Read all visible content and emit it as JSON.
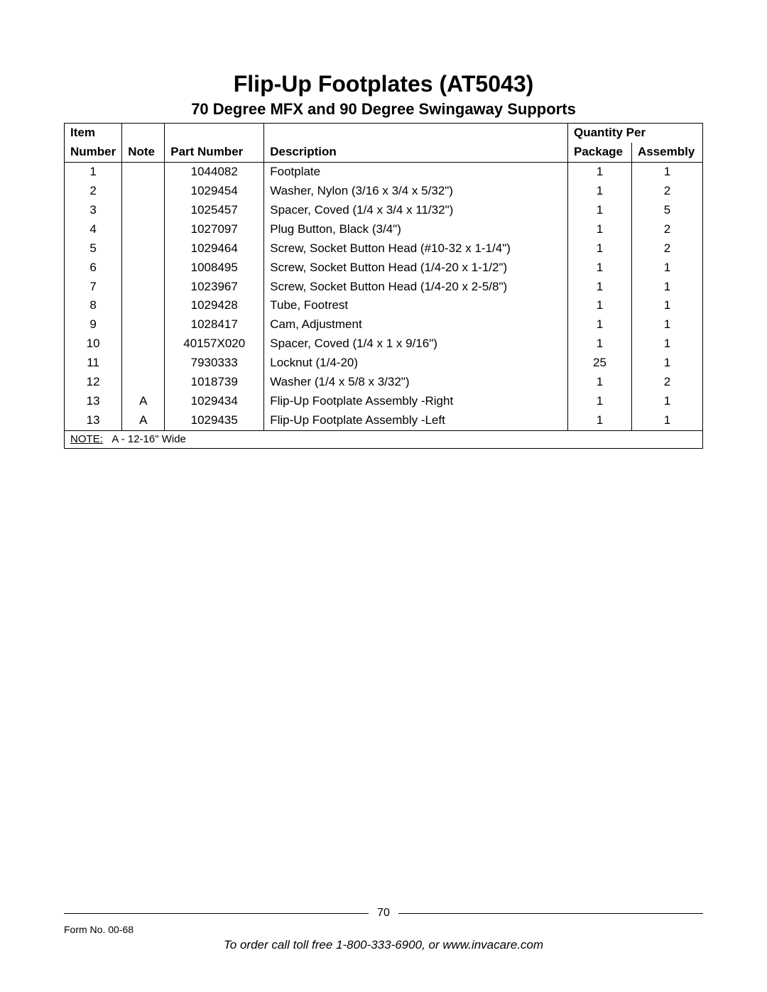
{
  "title": "Flip-Up Footplates (AT5043)",
  "subtitle": "70 Degree MFX and 90 Degree Swingaway Supports",
  "headers": {
    "item_top": "Item",
    "item": "Number",
    "note": "Note",
    "part_number": "Part Number",
    "description": "Description",
    "qty_per": "Quantity Per",
    "package": "Package",
    "assembly": "Assembly"
  },
  "rows": [
    {
      "item": "1",
      "note": "",
      "pn": "1044082",
      "desc": "Footplate",
      "pkg": "1",
      "asm": "1"
    },
    {
      "item": "2",
      "note": "",
      "pn": "1029454",
      "desc": "Washer, Nylon (3/16 x 3/4 x 5/32\")",
      "pkg": "1",
      "asm": "2"
    },
    {
      "item": "3",
      "note": "",
      "pn": "1025457",
      "desc": "Spacer, Coved (1/4 x 3/4 x 11/32\")",
      "pkg": "1",
      "asm": "5"
    },
    {
      "item": "4",
      "note": "",
      "pn": "1027097",
      "desc": "Plug Button, Black (3/4\")",
      "pkg": "1",
      "asm": "2"
    },
    {
      "item": "5",
      "note": "",
      "pn": "1029464",
      "desc": "Screw, Socket Button Head (#10-32 x 1-1/4\")",
      "pkg": "1",
      "asm": "2"
    },
    {
      "item": "6",
      "note": "",
      "pn": "1008495",
      "desc": "Screw, Socket Button Head (1/4-20 x 1-1/2\")",
      "pkg": "1",
      "asm": "1"
    },
    {
      "item": "7",
      "note": "",
      "pn": "1023967",
      "desc": "Screw, Socket Button Head (1/4-20 x 2-5/8\")",
      "pkg": "1",
      "asm": "1"
    },
    {
      "item": "8",
      "note": "",
      "pn": "1029428",
      "desc": "Tube, Footrest",
      "pkg": "1",
      "asm": "1"
    },
    {
      "item": "9",
      "note": "",
      "pn": "1028417",
      "desc": "Cam, Adjustment",
      "pkg": "1",
      "asm": "1"
    },
    {
      "item": "10",
      "note": "",
      "pn": "40157X020",
      "desc": "Spacer, Coved (1/4 x 1 x 9/16\")",
      "pkg": "1",
      "asm": "1"
    },
    {
      "item": "11",
      "note": "",
      "pn": "7930333",
      "desc": "Locknut (1/4-20)",
      "pkg": "25",
      "asm": "1"
    },
    {
      "item": "12",
      "note": "",
      "pn": "1018739",
      "desc": "Washer (1/4 x 5/8 x 3/32\")",
      "pkg": "1",
      "asm": "2"
    },
    {
      "item": "13",
      "note": "A",
      "pn": "1029434",
      "desc": "Flip-Up Footplate Assembly -Right",
      "pkg": "1",
      "asm": "1"
    },
    {
      "item": "13",
      "note": "A",
      "pn": "1029435",
      "desc": "Flip-Up Footplate Assembly -Left",
      "pkg": "1",
      "asm": "1"
    }
  ],
  "note": {
    "label": "NOTE:",
    "text": "A - 12-16\" Wide"
  },
  "footer": {
    "page_number": "70",
    "form_no": "Form No. 00-68",
    "ordering": "To order call toll free 1-800-333-6900, or www.invacare.com"
  }
}
